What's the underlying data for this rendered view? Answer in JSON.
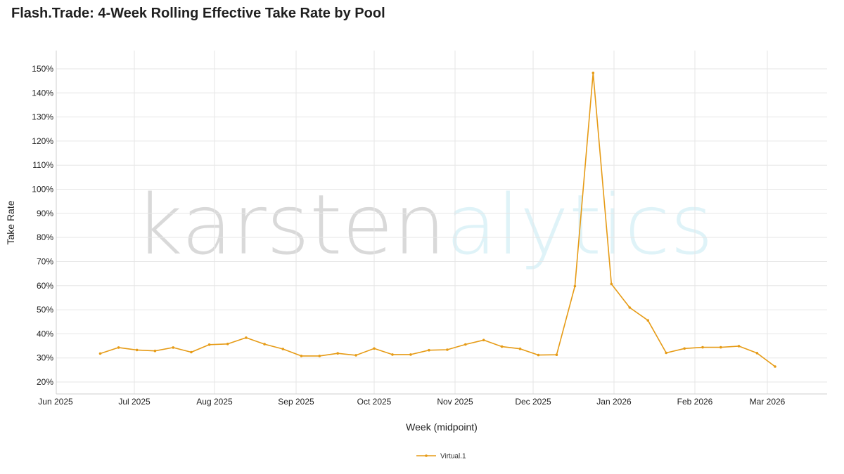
{
  "chart_data": {
    "type": "line",
    "title": "Flash.Trade: 4-Week Rolling Effective Take Rate by Pool",
    "xlabel": "Week (midpoint)",
    "ylabel": "Take Rate",
    "watermark": {
      "part1": "karsten",
      "part2": "alytics",
      "color1": "#d9d9d9",
      "color2": "#dff3f8"
    },
    "grid": true,
    "legend_position": "bottom-center",
    "x_range": [
      "2025-06-01",
      "2026-03-25"
    ],
    "ylim": [
      15.5,
      158
    ],
    "y_ticks": [
      20,
      30,
      40,
      50,
      60,
      70,
      80,
      90,
      100,
      110,
      120,
      130,
      140,
      150
    ],
    "y_tick_labels": [
      "20%",
      "30%",
      "40%",
      "50%",
      "60%",
      "70%",
      "80%",
      "90%",
      "100%",
      "110%",
      "120%",
      "130%",
      "140%",
      "150%"
    ],
    "x_ticks": [
      "2025-06-01",
      "2025-07-01",
      "2025-08-01",
      "2025-09-01",
      "2025-10-01",
      "2025-11-01",
      "2025-12-01",
      "2026-01-01",
      "2026-02-01",
      "2026-03-01"
    ],
    "x_tick_labels": [
      "Jun 2025",
      "Jul 2025",
      "Aug 2025",
      "Sep 2025",
      "Oct 2025",
      "Nov 2025",
      "Dec 2025",
      "Jan 2026",
      "Feb 2026",
      "Mar 2026"
    ],
    "series": [
      {
        "name": "Virtual.1",
        "color": "#e69b16",
        "points": [
          {
            "x": "2025-06-18",
            "y": 31.8
          },
          {
            "x": "2025-06-25",
            "y": 34.3
          },
          {
            "x": "2025-07-02",
            "y": 33.3
          },
          {
            "x": "2025-07-09",
            "y": 32.9
          },
          {
            "x": "2025-07-16",
            "y": 34.3
          },
          {
            "x": "2025-07-23",
            "y": 32.4
          },
          {
            "x": "2025-07-30",
            "y": 35.5
          },
          {
            "x": "2025-08-06",
            "y": 35.8
          },
          {
            "x": "2025-08-13",
            "y": 38.4
          },
          {
            "x": "2025-08-20",
            "y": 35.7
          },
          {
            "x": "2025-08-27",
            "y": 33.7
          },
          {
            "x": "2025-09-03",
            "y": 30.8
          },
          {
            "x": "2025-09-10",
            "y": 30.8
          },
          {
            "x": "2025-09-17",
            "y": 31.9
          },
          {
            "x": "2025-09-24",
            "y": 31.1
          },
          {
            "x": "2025-10-01",
            "y": 33.9
          },
          {
            "x": "2025-10-08",
            "y": 31.4
          },
          {
            "x": "2025-10-15",
            "y": 31.4
          },
          {
            "x": "2025-10-22",
            "y": 33.2
          },
          {
            "x": "2025-10-29",
            "y": 33.4
          },
          {
            "x": "2025-11-05",
            "y": 35.6
          },
          {
            "x": "2025-11-12",
            "y": 37.4
          },
          {
            "x": "2025-11-19",
            "y": 34.7
          },
          {
            "x": "2025-11-26",
            "y": 33.8
          },
          {
            "x": "2025-12-03",
            "y": 31.2
          },
          {
            "x": "2025-12-10",
            "y": 31.3
          },
          {
            "x": "2025-12-17",
            "y": 59.8
          },
          {
            "x": "2025-12-24",
            "y": 148.3
          },
          {
            "x": "2025-12-31",
            "y": 60.7
          },
          {
            "x": "2026-01-07",
            "y": 50.9
          },
          {
            "x": "2026-01-14",
            "y": 45.6
          },
          {
            "x": "2026-01-21",
            "y": 32.1
          },
          {
            "x": "2026-01-28",
            "y": 33.9
          },
          {
            "x": "2026-02-04",
            "y": 34.4
          },
          {
            "x": "2026-02-11",
            "y": 34.4
          },
          {
            "x": "2026-02-18",
            "y": 34.9
          },
          {
            "x": "2026-02-25",
            "y": 32.0
          },
          {
            "x": "2026-03-04",
            "y": 26.4
          }
        ]
      }
    ]
  }
}
